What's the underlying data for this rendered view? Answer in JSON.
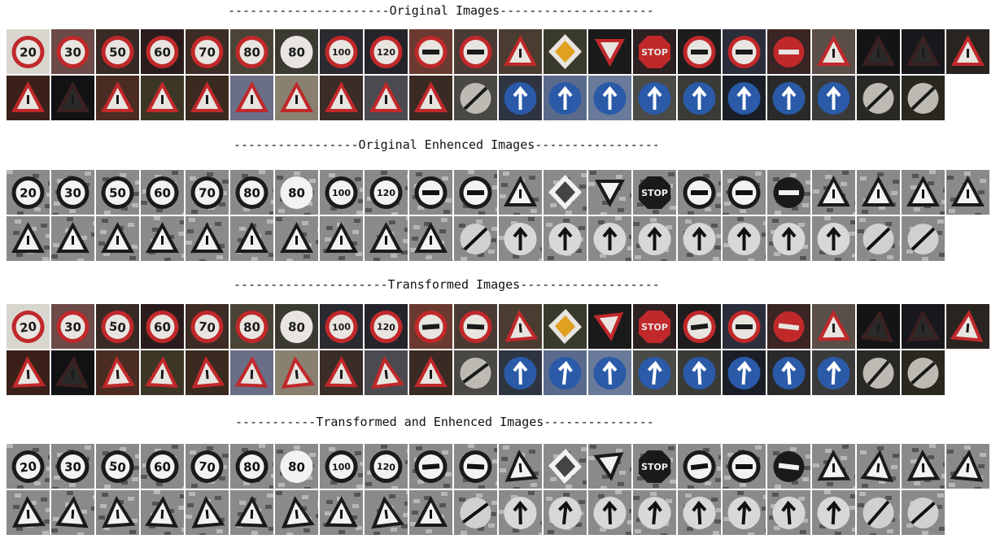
{
  "sections": [
    {
      "id": "original",
      "title": "----------------------Original Images---------------------",
      "style": "color"
    },
    {
      "id": "enhanced",
      "title": "-----------------Original Enhenced Images-----------------",
      "style": "enhanced"
    },
    {
      "id": "transformed",
      "title": "---------------------Transformed Images-------------------",
      "style": "color-transformed"
    },
    {
      "id": "transformed-enhanced",
      "title": "-----------Transformed and Enhenced Images---------------",
      "style": "enhanced-transformed"
    }
  ],
  "signs": [
    {
      "kind": "speed",
      "text": "20",
      "bg": "#d9d6d0"
    },
    {
      "kind": "speed",
      "text": "30",
      "bg": "#6b4a48"
    },
    {
      "kind": "speed",
      "text": "50",
      "bg": "#3a2a26"
    },
    {
      "kind": "speed",
      "text": "60",
      "bg": "#2a1c1c"
    },
    {
      "kind": "speed",
      "text": "70",
      "bg": "#3c2c24"
    },
    {
      "kind": "speed",
      "text": "80",
      "bg": "#4a4436"
    },
    {
      "kind": "speed-end",
      "text": "80",
      "bg": "#3a3a32"
    },
    {
      "kind": "speed",
      "text": "100",
      "bg": "#2a2a30"
    },
    {
      "kind": "speed",
      "text": "120",
      "bg": "#24242a"
    },
    {
      "kind": "no-passing",
      "text": "",
      "bg": "#6a3a30"
    },
    {
      "kind": "no-passing-trucks",
      "text": "",
      "bg": "#4a3a34"
    },
    {
      "kind": "triangle",
      "text": "",
      "bg": "#4a3c30"
    },
    {
      "kind": "diamond",
      "text": "",
      "bg": "#3a3a2c"
    },
    {
      "kind": "yield",
      "text": "",
      "bg": "#1a1a1a"
    },
    {
      "kind": "stop",
      "text": "STOP",
      "bg": "#2c2020"
    },
    {
      "kind": "no-vehicles",
      "text": "",
      "bg": "#1e1c1c"
    },
    {
      "kind": "no-trucks",
      "text": "",
      "bg": "#2a2e3a"
    },
    {
      "kind": "no-entry",
      "text": "",
      "bg": "#3a2424"
    },
    {
      "kind": "triangle",
      "text": "!",
      "bg": "#5a4e48"
    },
    {
      "kind": "triangle-dark",
      "text": "",
      "bg": "#141416"
    },
    {
      "kind": "triangle-dark",
      "text": "",
      "bg": "#18181c"
    },
    {
      "kind": "triangle",
      "text": "",
      "bg": "#2a2420"
    },
    {
      "kind": "triangle",
      "text": "",
      "bg": "#3a2018"
    },
    {
      "kind": "triangle-dark",
      "text": "",
      "bg": "#121214"
    },
    {
      "kind": "triangle",
      "text": "",
      "bg": "#4a2c22"
    },
    {
      "kind": "triangle",
      "text": "",
      "bg": "#3c3626"
    },
    {
      "kind": "triangle",
      "text": "",
      "bg": "#3a2a20"
    },
    {
      "kind": "triangle",
      "text": "",
      "bg": "#6a6e86"
    },
    {
      "kind": "triangle",
      "text": "",
      "bg": "#8a8070"
    },
    {
      "kind": "triangle",
      "text": "",
      "bg": "#3a2c26"
    },
    {
      "kind": "triangle",
      "text": "",
      "bg": "#4a4a50"
    },
    {
      "kind": "triangle",
      "text": "",
      "bg": "#3a2a24"
    },
    {
      "kind": "end",
      "text": "",
      "bg": "#4a4842"
    },
    {
      "kind": "blue-arrow",
      "text": "",
      "bg": "#2e3440"
    },
    {
      "kind": "blue-arrow",
      "text": "",
      "bg": "#5a6a8a"
    },
    {
      "kind": "blue-arrow",
      "text": "",
      "bg": "#6a7a9a"
    },
    {
      "kind": "blue-arrow",
      "text": "",
      "bg": "#4a4a46"
    },
    {
      "kind": "blue-arrow",
      "text": "",
      "bg": "#3a3a36"
    },
    {
      "kind": "blue-arrow",
      "text": "",
      "bg": "#1a1e26"
    },
    {
      "kind": "blue-arrow",
      "text": "",
      "bg": "#2a2a2a"
    },
    {
      "kind": "roundabout",
      "text": "",
      "bg": "#3a3a3a"
    },
    {
      "kind": "end",
      "text": "",
      "bg": "#2a2824"
    },
    {
      "kind": "end",
      "text": "",
      "bg": "#2a2620"
    }
  ]
}
